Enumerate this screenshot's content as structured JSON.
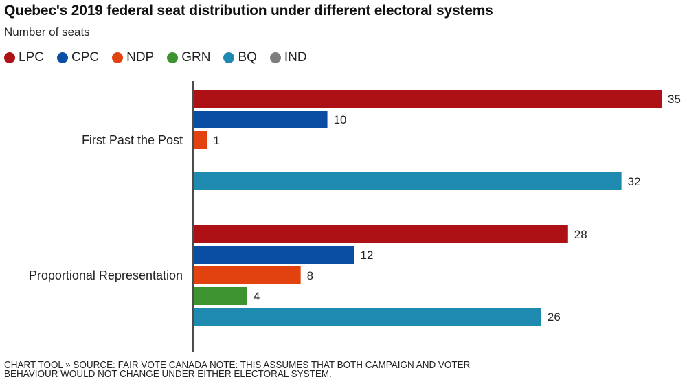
{
  "chart_data": {
    "type": "bar",
    "orientation": "horizontal",
    "title": "Quebec's 2019 federal seat distribution under different electoral systems",
    "subtitle": "Number of seats",
    "xlabel": "",
    "ylabel": "",
    "xlim": [
      0,
      35
    ],
    "grid": false,
    "legend_position": "top-left",
    "categories": [
      "First Past the Post",
      "Proportional Representation"
    ],
    "series": [
      {
        "name": "LPC",
        "color": "#ad1116",
        "values": [
          35,
          28
        ]
      },
      {
        "name": "CPC",
        "color": "#0a4ea4",
        "values": [
          10,
          12
        ]
      },
      {
        "name": "NDP",
        "color": "#e2420d",
        "values": [
          1,
          8
        ]
      },
      {
        "name": "GRN",
        "color": "#3d9330",
        "values": [
          null,
          4
        ]
      },
      {
        "name": "BQ",
        "color": "#1f8aaf",
        "values": [
          32,
          26
        ]
      },
      {
        "name": "IND",
        "color": "#7d7d7d",
        "values": [
          null,
          null
        ]
      }
    ]
  },
  "footer": {
    "line1": "CHART TOOL » SOURCE: FAIR VOTE CANADA NOTE: THIS ASSUMES THAT BOTH CAMPAIGN AND VOTER",
    "line2": "BEHAVIOUR WOULD NOT CHANGE UNDER EITHER ELECTORAL SYSTEM."
  }
}
